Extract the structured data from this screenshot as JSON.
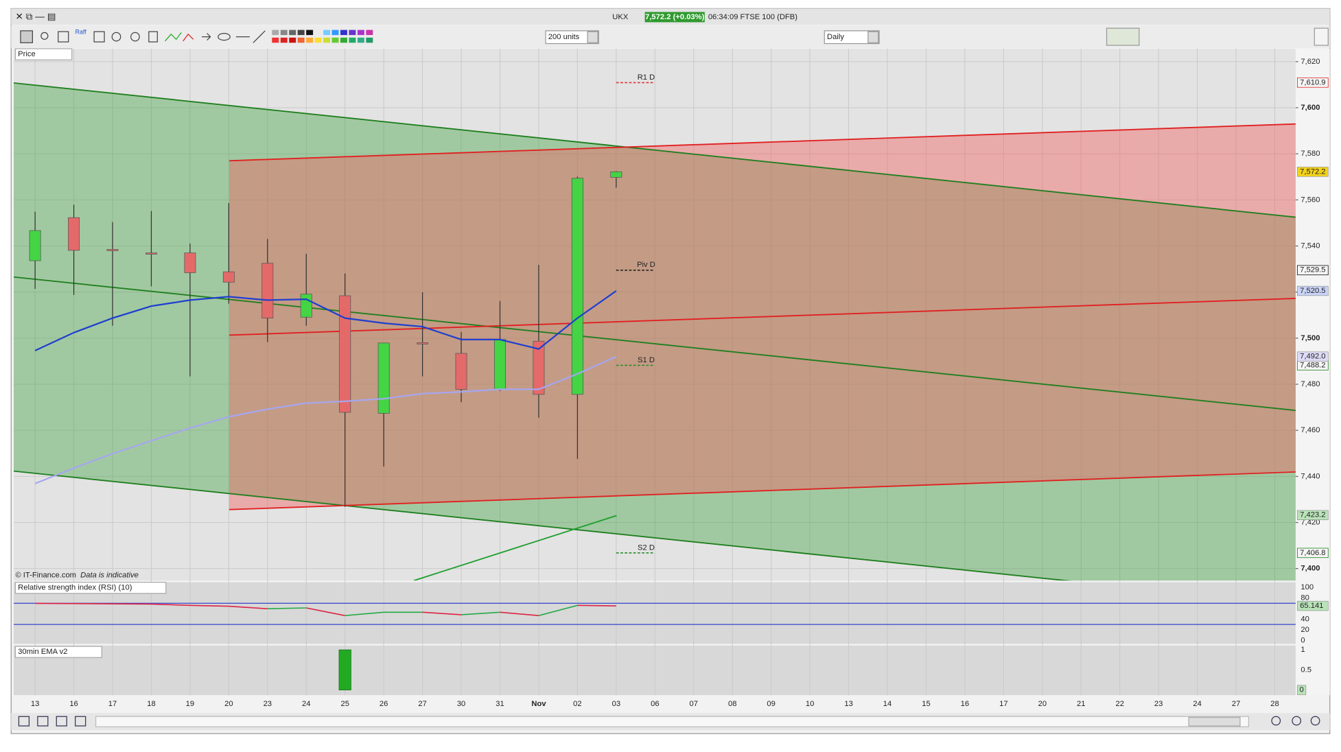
{
  "window": {
    "symbol": "UKX",
    "quote": "7,572.2 (+0.03%)",
    "status": "06:34:09 FTSE 100 (DFB)",
    "units": "200 units",
    "interval": "Daily",
    "raff": "Raff",
    "panel_label": "Price",
    "copyright": "© IT-Finance.com",
    "disclaimer": "Data is indicative"
  },
  "chart_data": [
    {
      "type": "candlestick",
      "categories": [
        "13",
        "16",
        "17",
        "18",
        "19",
        "20",
        "23",
        "24",
        "25",
        "26",
        "27",
        "30",
        "31",
        "Nov",
        "02",
        "03",
        "06",
        "07",
        "08",
        "09",
        "10",
        "13",
        "14",
        "15",
        "16",
        "17",
        "20",
        "21",
        "22",
        "23",
        "24",
        "27",
        "28"
      ],
      "open": [
        7533.6,
        7552.3,
        7538.5,
        7537,
        7537,
        7528.8,
        7532.5,
        7509.1,
        7518.4,
        7467.4,
        7498,
        7493.4,
        7477.8,
        7498.7,
        7475.6,
        7569.8,
        null,
        null,
        null,
        null,
        null,
        null,
        null,
        null,
        null,
        null,
        null,
        null,
        null,
        null,
        null,
        null,
        null
      ],
      "high": [
        7554.9,
        7557.9,
        7550.4,
        7555.2,
        7541.1,
        7558.6,
        7543,
        7536.6,
        7528.1,
        7497.9,
        7519.9,
        7502.7,
        7516.1,
        7531.8,
        7570.1,
        7572.5,
        null,
        null,
        null,
        null,
        null,
        null,
        null,
        null,
        null,
        null,
        null,
        null,
        null,
        null,
        null,
        null,
        null
      ],
      "low": [
        7521.4,
        7518.8,
        7505.4,
        7522.5,
        7483.4,
        7515,
        7498.3,
        7505.4,
        7426.8,
        7444.3,
        7483.4,
        7472.2,
        7477.1,
        7465.5,
        7447.6,
        7565.3,
        null,
        null,
        null,
        null,
        null,
        null,
        null,
        null,
        null,
        null,
        null,
        null,
        null,
        null,
        null,
        null,
        null
      ],
      "close": [
        7546.7,
        7538.1,
        7538,
        7536.5,
        7528.4,
        7524.3,
        7508.7,
        7519.1,
        7467.8,
        7497.9,
        7497.5,
        7477.8,
        7499.4,
        7475.6,
        7569.4,
        7572.2,
        null,
        null,
        null,
        null,
        null,
        null,
        null,
        null,
        null,
        null,
        null,
        null,
        null,
        null,
        null,
        null,
        null
      ],
      "up_color": "#44d444",
      "down_color": "#e46a6a",
      "series": [
        {
          "color": "#1f3fd0",
          "values": [
            7494.6,
            7502.4,
            7508.7,
            7513.9,
            7516.5,
            7518.0,
            7516.5,
            7516.9,
            7508.7,
            7506.5,
            7505.0,
            7499.4,
            7499.4,
            7495.3,
            7508.7,
            7520.5,
            null,
            null,
            null,
            null,
            null,
            null,
            null,
            null,
            null,
            null,
            null,
            null,
            null,
            null,
            null,
            null,
            null
          ]
        },
        {
          "color": "#a6a6f0",
          "values": [
            7436.9,
            7443.6,
            7449.9,
            7455.5,
            7461.0,
            7465.9,
            7469.2,
            7471.8,
            7472.6,
            7473.7,
            7475.9,
            7476.7,
            7477.8,
            7477.8,
            7484.5,
            7492.0,
            null,
            null,
            null,
            null,
            null,
            null,
            null,
            null,
            null,
            null,
            null,
            null,
            null,
            null,
            null,
            null,
            null
          ]
        }
      ],
      "ylim": [
        7394.8,
        7625.6
      ],
      "yticks": [
        {
          "value": 7400,
          "label": "7,400"
        },
        {
          "value": 7420,
          "label": "7,420"
        },
        {
          "value": 7440,
          "label": "7,440"
        },
        {
          "value": 7460,
          "label": "7,460"
        },
        {
          "value": 7480,
          "label": "7,480"
        },
        {
          "value": 7500,
          "label": "7,500"
        },
        {
          "value": 7520,
          "label": "7,520"
        },
        {
          "value": 7540,
          "label": "7,540"
        },
        {
          "value": 7560,
          "label": "7,560"
        },
        {
          "value": 7580,
          "label": "7,580"
        },
        {
          "value": 7600,
          "label": "7,600"
        },
        {
          "value": 7620,
          "label": "7,620"
        }
      ],
      "grid": true,
      "pivots": [
        {
          "label": "R1 D",
          "value": 7610.9,
          "value_label": "7,610.9",
          "color": "#dd3333"
        },
        {
          "label": "Piv D",
          "value": 7529.5,
          "value_label": "7,529.5",
          "color": "#222222"
        },
        {
          "label": "S1 D",
          "value": 7488.2,
          "value_label": "7,488.2",
          "color": "#2a8a2a"
        },
        {
          "label": "S2 D",
          "value": 7406.8,
          "value_label": "7,406.8",
          "color": "#2a8a2a"
        }
      ],
      "price_tags": [
        {
          "value": 7572.2,
          "label": "7,572.2",
          "color": "#f3d21a"
        },
        {
          "value": 7520.5,
          "label": "7,520.5",
          "color": "#c9d4f7"
        },
        {
          "value": 7492.0,
          "label": "7,492.0",
          "color": "#dcdcf7"
        },
        {
          "value": 7423.2,
          "label": "7,423.2",
          "color": "#b9e3b9"
        }
      ]
    },
    {
      "type": "line",
      "title": "Relative strength index (RSI) (10)",
      "values": [
        69.8,
        69.4,
        69.0,
        68.5,
        66.1,
        64.5,
        59.7,
        61.3,
        46.8,
        53.2,
        53.2,
        48.4,
        53.2,
        46.8,
        66.1,
        65.141,
        null,
        null,
        null,
        null,
        null,
        null,
        null,
        null,
        null,
        null,
        null,
        null,
        null,
        null,
        null,
        null,
        null
      ],
      "ylim": [
        0,
        100
      ],
      "yticks": [
        0,
        20,
        40,
        80,
        100
      ],
      "levels": [
        30,
        70
      ],
      "level_color": "#3344cc",
      "up_color": "#22aa44",
      "down_color": "#dd2244",
      "tag_color": "#b9e3b9"
    },
    {
      "type": "bar",
      "title": "30min EMA v2",
      "values": [
        0,
        0,
        0,
        0,
        0,
        0,
        0,
        0,
        1,
        0,
        0,
        0,
        0,
        0,
        0,
        0,
        null,
        null,
        null,
        null,
        null,
        null,
        null,
        null,
        null,
        null,
        null,
        null,
        null,
        null,
        null,
        null,
        null
      ],
      "ylim": [
        0,
        1
      ],
      "yticks": [
        0,
        0.5,
        1
      ],
      "color": "#22aa22",
      "tag_color": "#b9e3b9"
    }
  ]
}
